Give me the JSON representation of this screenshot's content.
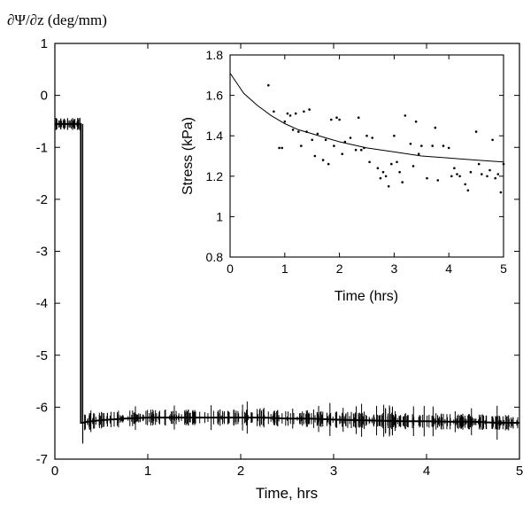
{
  "chart_data": [
    {
      "type": "line",
      "ylabel": "∂Ψ/∂z (deg/mm)",
      "xlabel": "Time, hrs",
      "xlim": [
        0,
        5
      ],
      "ylim": [
        -7,
        1
      ],
      "x_ticks": [
        "0",
        "1",
        "2",
        "3",
        "4",
        "5"
      ],
      "y_ticks": [
        "1",
        "0",
        "-1",
        "-2",
        "-3",
        "-4",
        "-5",
        "-6",
        "-7"
      ],
      "grid": false,
      "series": [
        {
          "x": [
            0.0,
            0.05,
            0.1,
            0.15,
            0.2,
            0.25,
            0.28,
            0.28,
            0.3,
            0.35,
            0.5,
            0.75,
            1.0,
            1.25,
            1.5,
            1.75,
            2.0,
            2.25,
            2.5,
            2.75,
            3.0,
            3.25,
            3.5,
            3.75,
            4.0,
            4.25,
            4.5,
            4.75,
            5.0
          ],
          "y": [
            -0.55,
            -0.55,
            -0.55,
            -0.55,
            -0.55,
            -0.55,
            -0.55,
            -6.3,
            -6.3,
            -6.28,
            -6.25,
            -6.22,
            -6.2,
            -6.2,
            -6.2,
            -6.2,
            -6.2,
            -6.2,
            -6.22,
            -6.22,
            -6.24,
            -6.25,
            -6.26,
            -6.27,
            -6.27,
            -6.28,
            -6.28,
            -6.3,
            -6.3
          ]
        }
      ]
    },
    {
      "type": "scatter",
      "xlabel": "Time (hrs)",
      "ylabel": "Stress (kPa)",
      "xlim": [
        0,
        5
      ],
      "ylim": [
        0.8,
        1.8
      ],
      "x_ticks": [
        "0",
        "1",
        "2",
        "3",
        "4",
        "5"
      ],
      "y_ticks": [
        "1.8",
        "1.6",
        "1.4",
        "1.2",
        "1",
        "0.8"
      ],
      "grid": false,
      "series": [
        {
          "x": [
            0.7,
            0.8,
            0.9,
            0.95,
            1.0,
            1.05,
            1.1,
            1.15,
            1.2,
            1.25,
            1.3,
            1.35,
            1.4,
            1.45,
            1.5,
            1.55,
            1.6,
            1.7,
            1.75,
            1.8,
            1.85,
            1.9,
            1.95,
            2.0,
            2.05,
            2.1,
            2.2,
            2.3,
            2.35,
            2.4,
            2.45,
            2.5,
            2.55,
            2.6,
            2.7,
            2.75,
            2.8,
            2.85,
            2.9,
            2.95,
            3.0,
            3.05,
            3.1,
            3.15,
            3.2,
            3.3,
            3.35,
            3.4,
            3.45,
            3.5,
            3.6,
            3.7,
            3.75,
            3.8,
            3.9,
            4.0,
            4.05,
            4.1,
            4.15,
            4.2,
            4.3,
            4.35,
            4.4,
            4.5,
            4.55,
            4.6,
            4.7,
            4.75,
            4.8,
            4.85,
            4.9,
            4.95,
            5.0
          ],
          "y": [
            1.65,
            1.52,
            1.34,
            1.34,
            1.47,
            1.51,
            1.5,
            1.43,
            1.51,
            1.42,
            1.35,
            1.52,
            1.42,
            1.53,
            1.38,
            1.3,
            1.41,
            1.28,
            1.38,
            1.26,
            1.48,
            1.35,
            1.49,
            1.48,
            1.31,
            1.37,
            1.39,
            1.33,
            1.49,
            1.33,
            1.34,
            1.4,
            1.27,
            1.39,
            1.24,
            1.19,
            1.22,
            1.2,
            1.15,
            1.26,
            1.4,
            1.27,
            1.22,
            1.17,
            1.5,
            1.36,
            1.25,
            1.47,
            1.31,
            1.35,
            1.19,
            1.35,
            1.44,
            1.18,
            1.35,
            1.34,
            1.2,
            1.24,
            1.21,
            1.2,
            1.16,
            1.13,
            1.22,
            1.42,
            1.26,
            1.21,
            1.2,
            1.23,
            1.38,
            1.19,
            1.21,
            1.12,
            1.26
          ]
        },
        {
          "x": [
            0.0,
            0.25,
            0.5,
            0.75,
            1.0,
            1.25,
            1.5,
            1.75,
            2.0,
            2.5,
            3.0,
            3.5,
            4.0,
            4.5,
            5.0
          ],
          "y": [
            1.71,
            1.61,
            1.55,
            1.5,
            1.46,
            1.43,
            1.41,
            1.39,
            1.37,
            1.34,
            1.32,
            1.3,
            1.29,
            1.28,
            1.27
          ]
        }
      ]
    }
  ]
}
